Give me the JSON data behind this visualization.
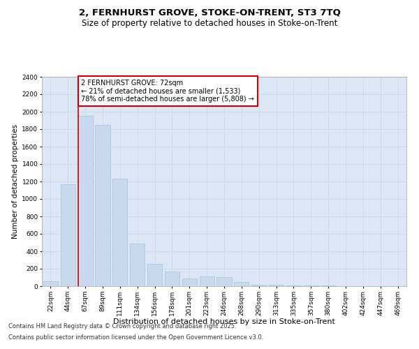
{
  "title_line1": "2, FERNHURST GROVE, STOKE-ON-TRENT, ST3 7TQ",
  "title_line2": "Size of property relative to detached houses in Stoke-on-Trent",
  "xlabel": "Distribution of detached houses by size in Stoke-on-Trent",
  "ylabel": "Number of detached properties",
  "categories": [
    "22sqm",
    "44sqm",
    "67sqm",
    "89sqm",
    "111sqm",
    "134sqm",
    "156sqm",
    "178sqm",
    "201sqm",
    "223sqm",
    "246sqm",
    "268sqm",
    "290sqm",
    "313sqm",
    "335sqm",
    "357sqm",
    "380sqm",
    "402sqm",
    "424sqm",
    "447sqm",
    "469sqm"
  ],
  "values": [
    55,
    1170,
    1950,
    1850,
    1230,
    490,
    260,
    165,
    85,
    110,
    105,
    50,
    20,
    15,
    10,
    8,
    5,
    4,
    3,
    3,
    2
  ],
  "bar_color": "#c9d9ed",
  "bar_edge_color": "#a8bfd8",
  "vline_color": "#cc0000",
  "annotation_text": "2 FERNHURST GROVE: 72sqm\n← 21% of detached houses are smaller (1,533)\n78% of semi-detached houses are larger (5,808) →",
  "annotation_box_color": "#ffffff",
  "annotation_box_edge": "#cc0000",
  "ylim": [
    0,
    2400
  ],
  "yticks": [
    0,
    200,
    400,
    600,
    800,
    1000,
    1200,
    1400,
    1600,
    1800,
    2000,
    2200,
    2400
  ],
  "grid_color": "#c8d4e8",
  "plot_background": "#dce6f5",
  "footer_line1": "Contains HM Land Registry data © Crown copyright and database right 2025.",
  "footer_line2": "Contains public sector information licensed under the Open Government Licence v3.0.",
  "title_fontsize": 9.5,
  "subtitle_fontsize": 8.5,
  "tick_fontsize": 6.5,
  "xlabel_fontsize": 8,
  "ylabel_fontsize": 7.5,
  "annotation_fontsize": 7,
  "footer_fontsize": 6
}
